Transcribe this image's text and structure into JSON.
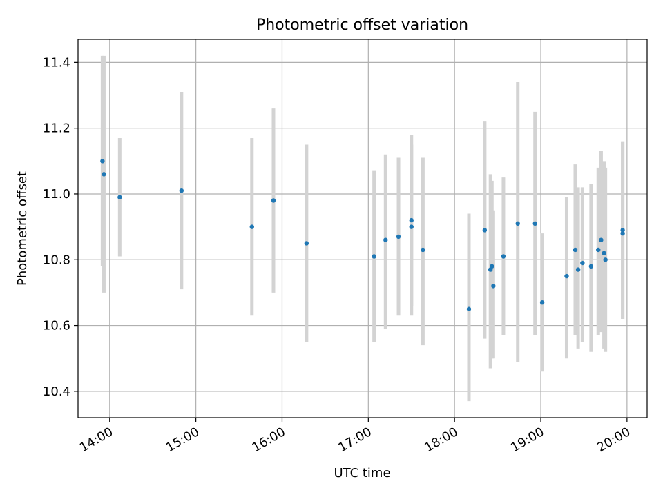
{
  "chart_data": {
    "type": "scatter",
    "title": "Photometric offset variation",
    "xlabel": "UTC time",
    "ylabel": "Photometric offset",
    "grid": true,
    "xlim": [
      "13:38",
      "20:14"
    ],
    "ylim": [
      10.32,
      11.47
    ],
    "x_ticks": [
      "14:00",
      "15:00",
      "16:00",
      "17:00",
      "18:00",
      "19:00",
      "20:00"
    ],
    "y_ticks": [
      10.4,
      10.6,
      10.8,
      11.0,
      11.2,
      11.4
    ],
    "colors": {
      "point": "#1f77b4",
      "errorbar": "#d3d3d3",
      "grid": "#b0b0b0"
    },
    "points": [
      {
        "x": "13:55",
        "y": 11.1,
        "low": 10.78,
        "high": 11.42
      },
      {
        "x": "13:56",
        "y": 11.06,
        "low": 10.7,
        "high": 11.42
      },
      {
        "x": "14:07",
        "y": 10.99,
        "low": 10.81,
        "high": 11.17
      },
      {
        "x": "14:50",
        "y": 11.01,
        "low": 10.71,
        "high": 11.31
      },
      {
        "x": "15:39",
        "y": 10.9,
        "low": 10.63,
        "high": 11.17
      },
      {
        "x": "15:54",
        "y": 10.98,
        "low": 10.7,
        "high": 11.26
      },
      {
        "x": "16:17",
        "y": 10.85,
        "low": 10.55,
        "high": 11.15
      },
      {
        "x": "17:04",
        "y": 10.81,
        "low": 10.55,
        "high": 11.07
      },
      {
        "x": "17:12",
        "y": 10.86,
        "low": 10.59,
        "high": 11.12
      },
      {
        "x": "17:21",
        "y": 10.87,
        "low": 10.63,
        "high": 11.11
      },
      {
        "x": "17:30",
        "y": 10.9,
        "low": 10.66,
        "high": 11.15
      },
      {
        "x": "17:30",
        "y": 10.92,
        "low": 10.63,
        "high": 11.18
      },
      {
        "x": "17:38",
        "y": 10.83,
        "low": 10.54,
        "high": 11.11
      },
      {
        "x": "18:10",
        "y": 10.65,
        "low": 10.37,
        "high": 10.94
      },
      {
        "x": "18:21",
        "y": 10.89,
        "low": 10.56,
        "high": 11.22
      },
      {
        "x": "18:25",
        "y": 10.77,
        "low": 10.47,
        "high": 11.06
      },
      {
        "x": "18:26",
        "y": 10.78,
        "low": 10.5,
        "high": 11.04
      },
      {
        "x": "18:27",
        "y": 10.72,
        "low": 10.5,
        "high": 10.95
      },
      {
        "x": "18:34",
        "y": 10.81,
        "low": 10.57,
        "high": 11.05
      },
      {
        "x": "18:44",
        "y": 10.91,
        "low": 10.49,
        "high": 11.34
      },
      {
        "x": "18:56",
        "y": 10.91,
        "low": 10.57,
        "high": 11.25
      },
      {
        "x": "19:01",
        "y": 10.67,
        "low": 10.46,
        "high": 10.88
      },
      {
        "x": "19:18",
        "y": 10.75,
        "low": 10.5,
        "high": 10.99
      },
      {
        "x": "19:24",
        "y": 10.83,
        "low": 10.57,
        "high": 11.09
      },
      {
        "x": "19:26",
        "y": 10.77,
        "low": 10.53,
        "high": 11.02
      },
      {
        "x": "19:29",
        "y": 10.79,
        "low": 10.55,
        "high": 11.02
      },
      {
        "x": "19:35",
        "y": 10.78,
        "low": 10.52,
        "high": 11.03
      },
      {
        "x": "19:40",
        "y": 10.83,
        "low": 10.57,
        "high": 11.08
      },
      {
        "x": "19:42",
        "y": 10.86,
        "low": 10.58,
        "high": 11.13
      },
      {
        "x": "19:44",
        "y": 10.82,
        "low": 10.53,
        "high": 11.1
      },
      {
        "x": "19:45",
        "y": 10.8,
        "low": 10.52,
        "high": 11.08
      },
      {
        "x": "19:57",
        "y": 10.88,
        "low": 10.62,
        "high": 11.16
      },
      {
        "x": "19:57",
        "y": 10.89,
        "low": 10.62,
        "high": 11.16
      }
    ]
  }
}
